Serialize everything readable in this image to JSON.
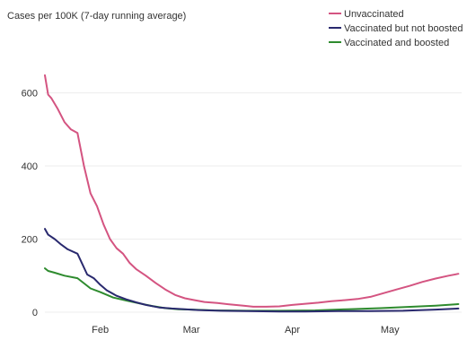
{
  "chart_data": {
    "type": "line",
    "title": "",
    "ylabel": "Cases per 100K (7-day running average)",
    "xlabel": "",
    "ylim": [
      0,
      700
    ],
    "yticks": [
      0,
      200,
      400,
      600
    ],
    "ytick_labels": [
      "0",
      "200",
      "400",
      "600"
    ],
    "xlim": [
      "2022-01-15",
      "2022-05-23"
    ],
    "xticks": [
      "2022-02-01",
      "2022-03-01",
      "2022-04-01",
      "2022-05-01"
    ],
    "xtick_labels": [
      "Feb",
      "Mar",
      "Apr",
      "May"
    ],
    "grid": "horizontal",
    "legend_position": "top-right",
    "series": [
      {
        "name": "Unvaccinated",
        "color": "#d45481",
        "points": [
          [
            "2022-01-15",
            648
          ],
          [
            "2022-01-16",
            595
          ],
          [
            "2022-01-17",
            585
          ],
          [
            "2022-01-19",
            555
          ],
          [
            "2022-01-21",
            520
          ],
          [
            "2022-01-23",
            500
          ],
          [
            "2022-01-25",
            490
          ],
          [
            "2022-01-27",
            400
          ],
          [
            "2022-01-29",
            325
          ],
          [
            "2022-01-31",
            290
          ],
          [
            "2022-02-02",
            240
          ],
          [
            "2022-02-04",
            200
          ],
          [
            "2022-02-06",
            175
          ],
          [
            "2022-02-08",
            160
          ],
          [
            "2022-02-10",
            135
          ],
          [
            "2022-02-12",
            118
          ],
          [
            "2022-02-15",
            100
          ],
          [
            "2022-02-18",
            80
          ],
          [
            "2022-02-21",
            62
          ],
          [
            "2022-02-24",
            47
          ],
          [
            "2022-02-27",
            38
          ],
          [
            "2022-03-02",
            33
          ],
          [
            "2022-03-05",
            28
          ],
          [
            "2022-03-09",
            25
          ],
          [
            "2022-03-13",
            21
          ],
          [
            "2022-03-17",
            18
          ],
          [
            "2022-03-20",
            15
          ],
          [
            "2022-03-24",
            15
          ],
          [
            "2022-03-28",
            16
          ],
          [
            "2022-04-01",
            20
          ],
          [
            "2022-04-05",
            23
          ],
          [
            "2022-04-09",
            26
          ],
          [
            "2022-04-13",
            30
          ],
          [
            "2022-04-17",
            33
          ],
          [
            "2022-04-21",
            36
          ],
          [
            "2022-04-25",
            42
          ],
          [
            "2022-04-29",
            52
          ],
          [
            "2022-05-03",
            62
          ],
          [
            "2022-05-07",
            72
          ],
          [
            "2022-05-11",
            83
          ],
          [
            "2022-05-15",
            92
          ],
          [
            "2022-05-19",
            100
          ],
          [
            "2022-05-22",
            105
          ]
        ]
      },
      {
        "name": "Vaccinated but not boosted",
        "color": "#29296e",
        "points": [
          [
            "2022-01-15",
            228
          ],
          [
            "2022-01-16",
            212
          ],
          [
            "2022-01-18",
            200
          ],
          [
            "2022-01-20",
            185
          ],
          [
            "2022-01-22",
            172
          ],
          [
            "2022-01-25",
            160
          ],
          [
            "2022-01-28",
            103
          ],
          [
            "2022-01-30",
            93
          ],
          [
            "2022-02-01",
            75
          ],
          [
            "2022-02-03",
            60
          ],
          [
            "2022-02-06",
            45
          ],
          [
            "2022-02-09",
            35
          ],
          [
            "2022-02-12",
            27
          ],
          [
            "2022-02-15",
            20
          ],
          [
            "2022-02-19",
            13
          ],
          [
            "2022-02-23",
            10
          ],
          [
            "2022-02-27",
            8
          ],
          [
            "2022-03-03",
            6
          ],
          [
            "2022-03-10",
            4
          ],
          [
            "2022-03-18",
            3
          ],
          [
            "2022-03-28",
            2
          ],
          [
            "2022-04-05",
            2
          ],
          [
            "2022-04-15",
            3
          ],
          [
            "2022-04-25",
            3
          ],
          [
            "2022-05-05",
            4
          ],
          [
            "2022-05-15",
            7
          ],
          [
            "2022-05-22",
            10
          ]
        ]
      },
      {
        "name": "Vaccinated and boosted",
        "color": "#2e8b2e",
        "points": [
          [
            "2022-01-15",
            120
          ],
          [
            "2022-01-16",
            113
          ],
          [
            "2022-01-18",
            108
          ],
          [
            "2022-01-21",
            100
          ],
          [
            "2022-01-25",
            93
          ],
          [
            "2022-01-29",
            65
          ],
          [
            "2022-02-01",
            55
          ],
          [
            "2022-02-05",
            40
          ],
          [
            "2022-02-09",
            32
          ],
          [
            "2022-02-13",
            24
          ],
          [
            "2022-02-17",
            17
          ],
          [
            "2022-02-21",
            11
          ],
          [
            "2022-02-25",
            8
          ],
          [
            "2022-03-01",
            7
          ],
          [
            "2022-03-08",
            5
          ],
          [
            "2022-03-18",
            4
          ],
          [
            "2022-03-28",
            4
          ],
          [
            "2022-04-08",
            5
          ],
          [
            "2022-04-18",
            8
          ],
          [
            "2022-04-28",
            11
          ],
          [
            "2022-05-08",
            15
          ],
          [
            "2022-05-15",
            18
          ],
          [
            "2022-05-22",
            22
          ]
        ]
      }
    ]
  }
}
